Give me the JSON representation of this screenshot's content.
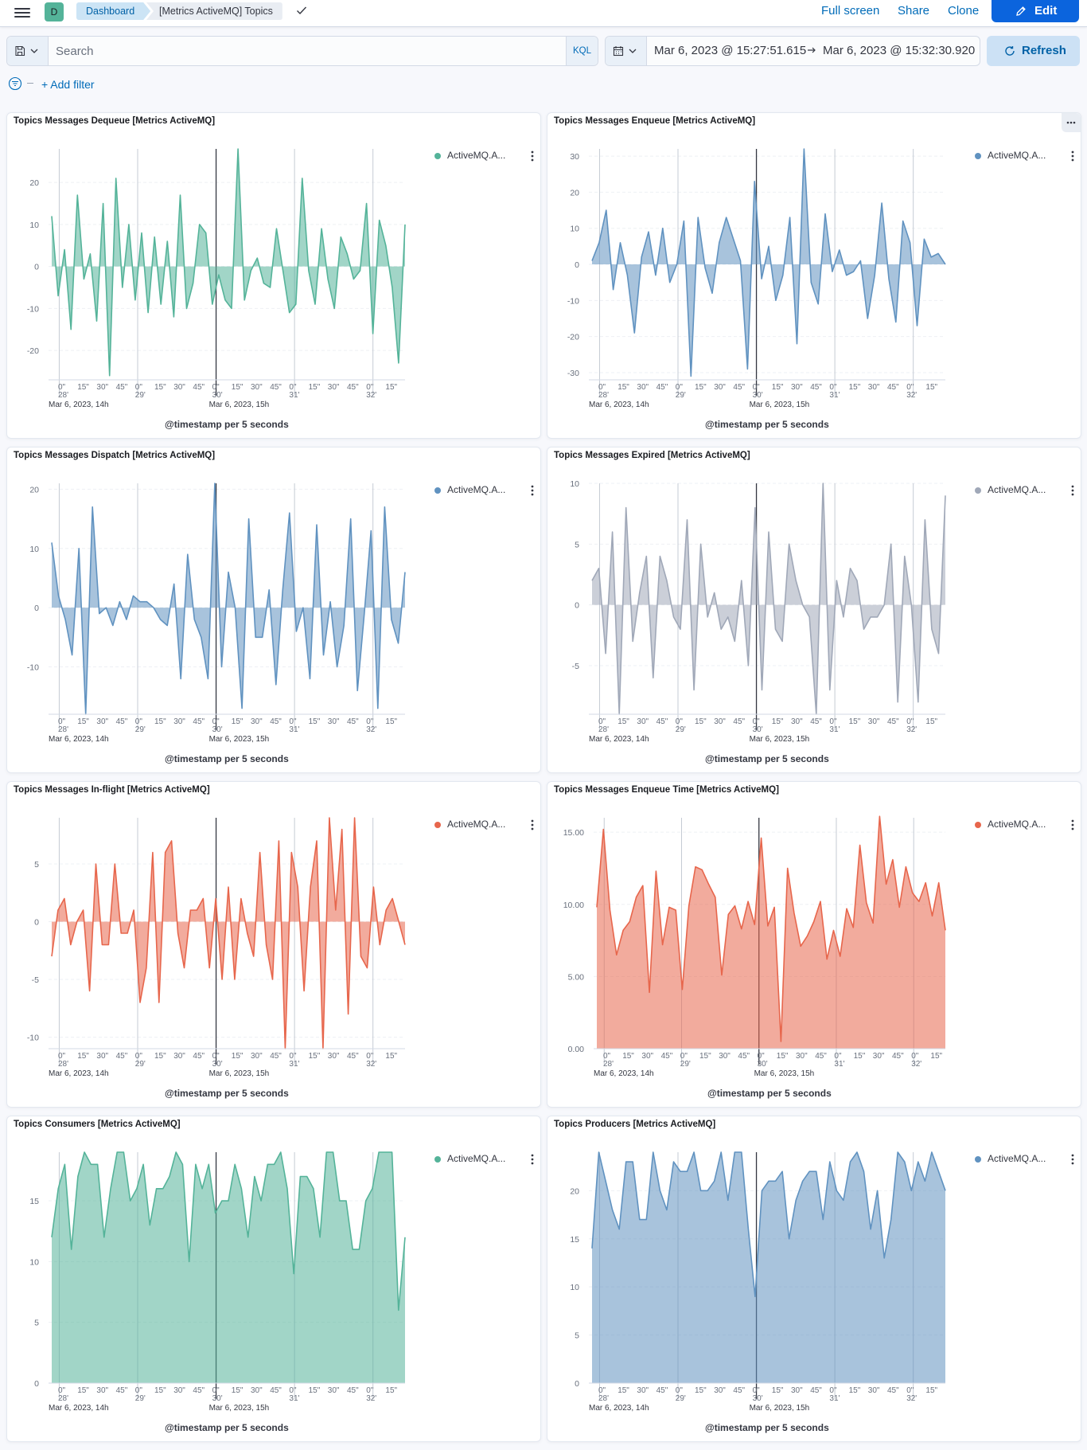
{
  "header": {
    "avatar_letter": "D",
    "breadcrumbs": [
      "Dashboard",
      "[Metrics ActiveMQ] Topics"
    ],
    "actions": [
      "Full screen",
      "Share",
      "Clone"
    ],
    "edit_label": "Edit"
  },
  "query": {
    "placeholder": "Search",
    "language": "KQL",
    "time_start": "Mar 6, 2023 @ 15:27:51.615",
    "time_end": "Mar 6, 2023 @ 15:32:30.920",
    "refresh_label": "Refresh",
    "add_filter_label": "+ Add filter"
  },
  "colors": {
    "green": "#54b399",
    "blue": "#6092c0",
    "gray": "#a0a8b8",
    "red": "#e7664c"
  },
  "panels": [
    {
      "title": "Topics Messages Dequeue [Metrics ActiveMQ]",
      "legend": "ActiveMQ.A...",
      "x_axis_title": "@timestamp per 5 seconds",
      "chart_data": {
        "type": "area",
        "color": "green",
        "ylim": [
          -27,
          28
        ],
        "yticks": [
          20,
          10,
          0,
          -10,
          -20
        ],
        "tick_format": "int",
        "baseline": "zero",
        "values": [
          12,
          -7,
          4,
          -15,
          17,
          -3,
          3,
          -13,
          15,
          -26,
          21,
          -5,
          10,
          -8,
          8,
          -11,
          7,
          -9,
          6,
          -12,
          17,
          -10,
          -4,
          10,
          8,
          -9,
          -2,
          -8,
          -10,
          28,
          -8,
          -1,
          2,
          -4,
          -5,
          9,
          -1,
          -11,
          -9,
          21,
          -1,
          -9,
          9,
          -3,
          -10,
          7,
          3,
          -3,
          -1,
          15,
          -16,
          11,
          5,
          -5,
          -23,
          10
        ]
      }
    },
    {
      "title": "Topics Messages Enqueue [Metrics ActiveMQ]",
      "legend": "ActiveMQ.A...",
      "x_axis_title": "@timestamp per 5 seconds",
      "chart_data": {
        "type": "area",
        "color": "blue",
        "ylim": [
          -32,
          32
        ],
        "yticks": [
          30,
          20,
          10,
          0,
          -10,
          -20,
          -30
        ],
        "tick_format": "int",
        "baseline": "zero",
        "values": [
          1,
          6,
          15,
          -7,
          6,
          -3,
          -19,
          2,
          9,
          -3,
          10,
          -5,
          0,
          12,
          -31,
          13,
          -1,
          -8,
          6,
          13,
          7,
          1,
          -29,
          23,
          -4,
          5,
          -10,
          -3,
          13,
          -22,
          32,
          -5,
          -11,
          14,
          -2,
          4,
          -3,
          -2,
          1,
          -15,
          -3,
          17,
          -4,
          -16,
          12,
          6,
          -17,
          7,
          2,
          3,
          0
        ]
      }
    },
    {
      "title": "Topics Messages Dispatch [Metrics ActiveMQ]",
      "legend": "ActiveMQ.A...",
      "x_axis_title": "@timestamp per 5 seconds",
      "chart_data": {
        "type": "area",
        "color": "blue",
        "ylim": [
          -18,
          21
        ],
        "yticks": [
          20,
          10,
          0,
          -10
        ],
        "tick_format": "int",
        "baseline": "zero",
        "values": [
          11,
          2,
          -2,
          -8,
          10,
          -18,
          17,
          -1,
          0,
          -3,
          1,
          -2,
          2,
          1,
          1,
          0,
          -2,
          -3,
          4,
          -12,
          9,
          -2,
          -5,
          -12,
          21,
          -10,
          6,
          0,
          -17,
          15,
          -5,
          -5,
          3,
          -13,
          3,
          16,
          -4,
          0,
          -12,
          14,
          -8,
          1,
          -10,
          -3,
          15,
          -14,
          -1,
          13,
          -17,
          17,
          -2,
          -6,
          6
        ]
      }
    },
    {
      "title": "Topics Messages Expired [Metrics ActiveMQ]",
      "legend": "ActiveMQ.A...",
      "x_axis_title": "@timestamp per 5 seconds",
      "chart_data": {
        "type": "area",
        "color": "gray",
        "ylim": [
          -9,
          10
        ],
        "yticks": [
          10,
          5,
          0,
          -5
        ],
        "tick_format": "int",
        "baseline": "zero",
        "values": [
          2,
          3,
          -4,
          6,
          -9,
          8,
          -3,
          1,
          4,
          -6,
          4,
          2,
          -1,
          -2,
          7,
          -7,
          5,
          -1,
          1,
          -2,
          -1,
          -3,
          2,
          -5,
          8,
          -7,
          6,
          -2,
          -3,
          5,
          2,
          0,
          -1,
          -9,
          10,
          -7,
          2,
          -1,
          3,
          2,
          -2,
          -1,
          -1,
          0,
          5,
          -8,
          4,
          0,
          -8,
          7,
          -2,
          -4,
          9
        ]
      }
    },
    {
      "title": "Topics Messages In-flight [Metrics ActiveMQ]",
      "legend": "ActiveMQ.A...",
      "x_axis_title": "@timestamp per 5 seconds",
      "chart_data": {
        "type": "area",
        "color": "red",
        "ylim": [
          -11,
          9
        ],
        "yticks": [
          5,
          0,
          -5,
          -10
        ],
        "tick_format": "int",
        "baseline": "zero",
        "values": [
          -3,
          1,
          2,
          -2,
          0,
          1,
          -6,
          5,
          -2,
          -2,
          5,
          -1,
          -1,
          1,
          -7,
          -4,
          6,
          -7,
          6,
          7,
          -1,
          -4,
          1,
          1,
          2,
          -4,
          2,
          -5,
          3,
          -5,
          2,
          -1,
          -3,
          6,
          -2,
          -5,
          7,
          -11,
          6,
          3,
          -6,
          3,
          7,
          -11,
          9,
          1,
          8,
          -8,
          9,
          -3,
          -4,
          3,
          -2,
          1,
          2,
          0,
          -2
        ]
      }
    },
    {
      "title": "Topics Messages Enqueue Time [Metrics ActiveMQ]",
      "legend": "ActiveMQ.A...",
      "x_axis_title": "@timestamp per 5 seconds",
      "chart_data": {
        "type": "area",
        "color": "red",
        "ylim": [
          0,
          16
        ],
        "yticks": [
          15,
          10,
          5,
          0
        ],
        "tick_format": "2dp",
        "baseline": "min",
        "values": [
          9.8,
          15.2,
          9.6,
          6.5,
          8.2,
          8.8,
          10.5,
          11.3,
          3.9,
          12.3,
          7.2,
          9.8,
          9.6,
          4.1,
          9.9,
          12.6,
          12.4,
          11.4,
          10.5,
          5.1,
          9.3,
          9.9,
          8.3,
          10.2,
          8.6,
          14.6,
          8.5,
          9.8,
          0.5,
          12.5,
          9.4,
          7.1,
          7.8,
          8.8,
          10.2,
          6.2,
          8.2,
          6.4,
          9.7,
          8.4,
          14.1,
          10.1,
          8.7,
          16.1,
          11.4,
          13.1,
          9.8,
          12.6,
          10.8,
          10.2,
          11.5,
          9.2,
          11.5,
          8.2
        ]
      }
    },
    {
      "title": "Topics Consumers [Metrics ActiveMQ]",
      "legend": "ActiveMQ.A...",
      "x_axis_title": "@timestamp per 5 seconds",
      "chart_data": {
        "type": "area",
        "color": "green",
        "ylim": [
          0,
          19
        ],
        "yticks": [
          15,
          10,
          5,
          0
        ],
        "tick_format": "int",
        "baseline": "min",
        "values": [
          12,
          16,
          18,
          11,
          17,
          19,
          18,
          18,
          12,
          16,
          19,
          19,
          15,
          16,
          18,
          13,
          16,
          16,
          17,
          19,
          18,
          10,
          18,
          16,
          18,
          14,
          15,
          15,
          18,
          16,
          12,
          17,
          15,
          18,
          18,
          19,
          16,
          9,
          17,
          17,
          16,
          12,
          19,
          19,
          15,
          15,
          11,
          11,
          15,
          16,
          19,
          19,
          19,
          6,
          12
        ]
      }
    },
    {
      "title": "Topics Producers [Metrics ActiveMQ]",
      "legend": "ActiveMQ.A...",
      "x_axis_title": "@timestamp per 5 seconds",
      "chart_data": {
        "type": "area",
        "color": "blue",
        "ylim": [
          0,
          24
        ],
        "yticks": [
          20,
          15,
          10,
          5,
          0
        ],
        "tick_format": "int",
        "baseline": "min",
        "values": [
          14,
          24,
          21,
          18,
          16,
          23,
          23,
          17,
          17,
          24,
          20,
          18,
          23,
          22,
          22,
          24,
          20,
          20,
          21,
          24,
          19,
          24,
          24,
          16,
          9,
          20,
          21,
          21,
          22,
          15,
          19,
          21,
          22,
          22,
          17,
          23,
          20,
          19,
          23,
          24,
          22,
          16,
          20,
          13,
          17,
          24,
          23,
          20,
          23,
          21,
          24,
          22,
          20
        ]
      }
    }
  ],
  "x_axis": {
    "tick_labels": [
      "0\"",
      "15\"",
      "30\"",
      "45\"",
      "0\"",
      "15\"",
      "30\"",
      "45\"",
      "0\"",
      "15\"",
      "30\"",
      "45\"",
      "0\"",
      "15\"",
      "30\"",
      "45\"",
      "0\"",
      "15\""
    ],
    "minute_labels": [
      "28'",
      "29'",
      "30'",
      "31'",
      "32'"
    ],
    "hour_labels": [
      "Mar 6, 2023, 14h",
      "Mar 6, 2023, 15h"
    ]
  }
}
